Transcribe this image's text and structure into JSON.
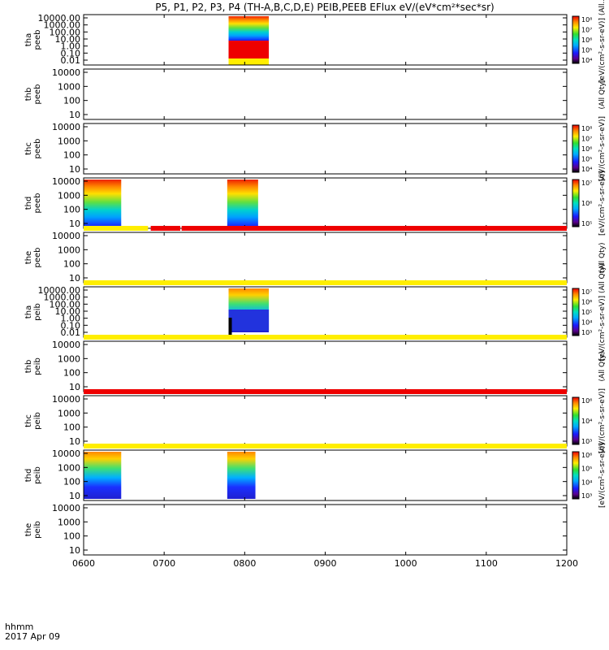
{
  "title": "P5, P1, P2, P3, P4 (TH-A,B,C,D,E) PEIB,PEEB EFlux eV/(eV*cm²*sec*sr)",
  "colors": {
    "yellow": "#ffee00",
    "red": "#ee0000",
    "black": "#000000"
  },
  "chart_data": {
    "type": "heatmap",
    "title": "P5, P1, P2, P3, P4 (TH-A,B,C,D,E) PEIB,PEEB EFlux eV/(eV*cm²*sec*sr)",
    "x_axis": {
      "title_lines": [
        "hhmm",
        "2017 Apr 09"
      ],
      "range": [
        "0600",
        "1200"
      ],
      "tick_labels": [
        "0600",
        "0700",
        "0800",
        "0900",
        "1000",
        "1100",
        "1200"
      ]
    },
    "panels": [
      {
        "id": "tha-peeb",
        "probe": "tha",
        "product": "peeb",
        "y_scale": "log",
        "y_ticks": [
          "10000.00",
          "1000.00",
          "100.00",
          "10.00",
          "1.00",
          "0.10",
          "0.01"
        ],
        "colorbar": true,
        "colorbar_ticks": [
          "10⁸",
          "10⁷",
          "10⁶",
          "10⁵",
          "10⁴"
        ],
        "colorbar_label": "[eV/(cm²-s-sr-eV)] (All...",
        "data_intervals": [
          [
            "0748",
            "0818"
          ]
        ],
        "status_bar": null
      },
      {
        "id": "thb-peeb",
        "probe": "thb",
        "product": "peeb",
        "y_scale": "log",
        "y_ticks": [
          "10000",
          "1000",
          "100",
          "10"
        ],
        "colorbar": false,
        "colorbar_label": "(All Qty)",
        "data_intervals": [],
        "status_bar": null
      },
      {
        "id": "thc-peeb",
        "probe": "thc",
        "product": "peeb",
        "y_scale": "log",
        "y_ticks": [
          "10000",
          "1000",
          "100",
          "10"
        ],
        "colorbar": true,
        "colorbar_ticks": [
          "10⁸",
          "10⁷",
          "10⁶",
          "10⁵",
          "10⁴"
        ],
        "colorbar_label": "[eV/(cm²-s-sr-eV)]",
        "data_intervals": [],
        "status_bar": null
      },
      {
        "id": "thd-peeb",
        "probe": "thd",
        "product": "peeb",
        "y_scale": "log",
        "y_ticks": [
          "10000",
          "1000",
          "100",
          "10"
        ],
        "colorbar": true,
        "colorbar_ticks": [
          "10⁷",
          "10⁶",
          "10⁵"
        ],
        "colorbar_label": "[eV/(cm²-s-sr-eV)]",
        "data_intervals": [
          [
            "0600",
            "0628"
          ],
          [
            "0747",
            "0810"
          ]
        ],
        "status_bar": null
      },
      {
        "id": "the-peeb",
        "probe": "the",
        "product": "peeb",
        "y_scale": "log",
        "y_ticks": [
          "10000",
          "1000",
          "100",
          "10"
        ],
        "colorbar": false,
        "colorbar_label": "(All Qty)",
        "data_intervals": [],
        "status_bar": [
          [
            "0600",
            "0648",
            "yellow"
          ],
          [
            "0650",
            "0712",
            "red"
          ],
          [
            "0713",
            "1200",
            "red"
          ]
        ]
      },
      {
        "id": "tha-peib",
        "probe": "tha",
        "product": "peib",
        "y_scale": "log",
        "y_ticks": [
          "10000.00",
          "1000.00",
          "100.00",
          "10.00",
          "1.00",
          "0.10",
          "0.01"
        ],
        "colorbar": true,
        "colorbar_ticks": [
          "10⁷",
          "10⁶",
          "10⁵",
          "10⁴",
          "10³"
        ],
        "colorbar_label": "[eV/(cm²-s-sr-eV)] (All Qty)",
        "data_intervals": [
          [
            "0748",
            "0818"
          ]
        ],
        "status_bar": [
          [
            "0600",
            "1200",
            "yellow"
          ]
        ]
      },
      {
        "id": "thb-peib",
        "probe": "thb",
        "product": "peib",
        "y_scale": "log",
        "y_ticks": [
          "10000",
          "1000",
          "100",
          "10"
        ],
        "colorbar": false,
        "colorbar_label": "(All Qty)",
        "data_intervals": [],
        "status_bar": [
          [
            "0600",
            "1200",
            "yellow"
          ]
        ]
      },
      {
        "id": "thc-peib",
        "probe": "thc",
        "product": "peib",
        "y_scale": "log",
        "y_ticks": [
          "10000",
          "1000",
          "100",
          "10"
        ],
        "colorbar": true,
        "colorbar_ticks": [
          "10⁶",
          "10⁴",
          "10³"
        ],
        "colorbar_label": "[eV/(cm²-s-sr-eV)]",
        "data_intervals": [],
        "status_bar": [
          [
            "0600",
            "1200",
            "red"
          ]
        ]
      },
      {
        "id": "thd-peib",
        "probe": "thd",
        "product": "peib",
        "y_scale": "log",
        "y_ticks": [
          "10000",
          "1000",
          "100",
          "10"
        ],
        "colorbar": true,
        "colorbar_ticks": [
          "10⁶",
          "10⁵",
          "10⁴",
          "10³"
        ],
        "colorbar_label": "[eV/(cm²-s-sr-eV)]",
        "data_intervals": [
          [
            "0600",
            "0628"
          ],
          [
            "0747",
            "0808"
          ]
        ],
        "status_bar": [
          [
            "0600",
            "1200",
            "yellow"
          ]
        ]
      },
      {
        "id": "the-peib",
        "probe": "the",
        "product": "peib",
        "y_scale": "log",
        "y_ticks": [
          "10000",
          "1000",
          "100",
          "10"
        ],
        "colorbar": false,
        "colorbar_label": "",
        "data_intervals": [],
        "status_bar": null
      }
    ]
  }
}
